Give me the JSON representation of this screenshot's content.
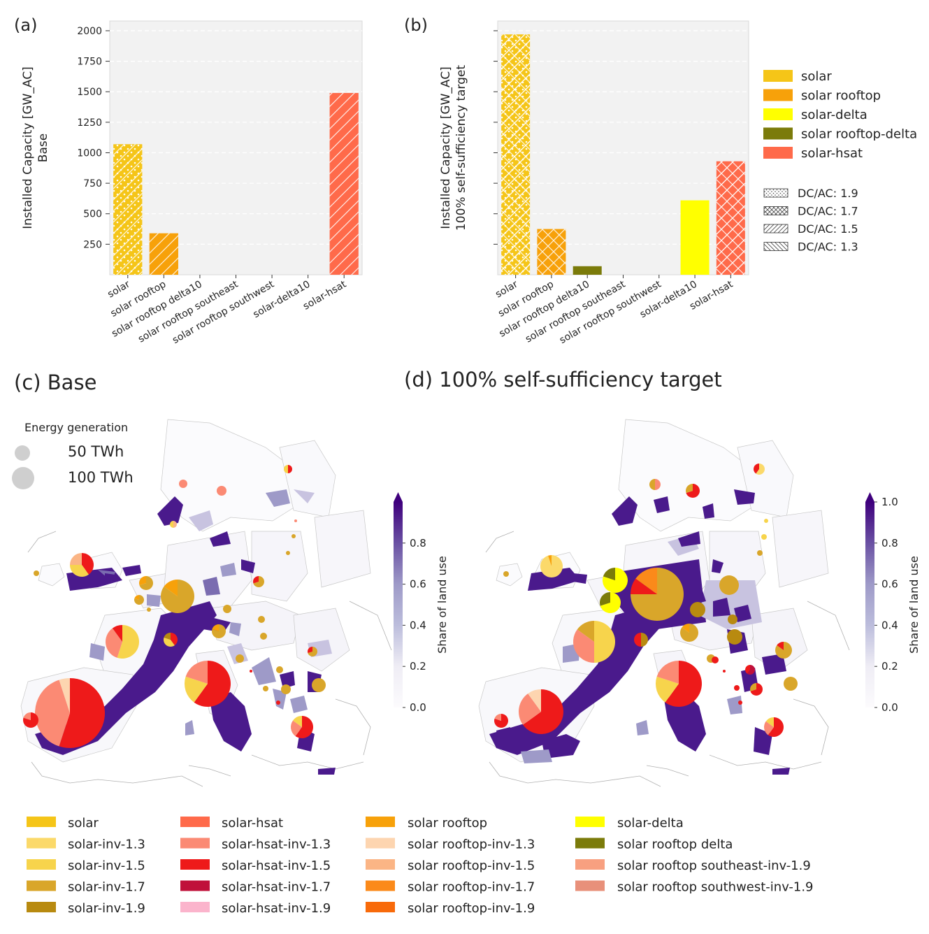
{
  "chart_data": {
    "panels": [
      {
        "id": "a",
        "type": "bar",
        "letter": "(a)",
        "ylabel": "Installed Capacity [GW_AC]",
        "ylabel2": "Base",
        "ylim": [
          0,
          2080
        ],
        "yticks": [
          250,
          500,
          750,
          1000,
          1250,
          1500,
          1750,
          2000
        ],
        "show_tick_labels": true,
        "categories": [
          "solar",
          "solar rooftop",
          "solar rooftop delta10",
          "solar rooftop southeast",
          "solar rooftop southwest",
          "solar-delta10",
          "solar-hsat"
        ],
        "values": [
          1070,
          340,
          0,
          0,
          0,
          0,
          1490
        ],
        "colors": [
          "#f5c518",
          "#f7a10a",
          "#7b7b0a",
          "#f0a07a",
          "#e8907a",
          "#ffff00",
          "#ff6a4a"
        ],
        "hatches": [
          "dots-slash",
          "slash",
          "none",
          "none",
          "none",
          "none",
          "slash"
        ]
      },
      {
        "id": "b",
        "type": "bar",
        "letter": "(b)",
        "ylabel": "Installed Capacity [GW_AC]",
        "ylabel2": "100% self-sufficiency target",
        "ylim": [
          0,
          2080
        ],
        "yticks": [
          250,
          500,
          750,
          1000,
          1250,
          1500,
          1750,
          2000
        ],
        "show_tick_labels": false,
        "categories": [
          "solar",
          "solar rooftop",
          "solar rooftop delta10",
          "solar rooftop southeast",
          "solar rooftop southwest",
          "solar-delta10",
          "solar-hsat"
        ],
        "values": [
          1970,
          375,
          70,
          0,
          0,
          610,
          930
        ],
        "colors": [
          "#f5c518",
          "#f7a10a",
          "#7b7b0a",
          "#f0a07a",
          "#e8907a",
          "#ffff00",
          "#ff6a4a"
        ],
        "hatches": [
          "dots-cross-slash",
          "cross",
          "none",
          "none",
          "none",
          "none",
          "cross-slash"
        ]
      }
    ],
    "bar_legend": {
      "colors": [
        {
          "label": "solar",
          "color": "#f5c518"
        },
        {
          "label": "solar rooftop",
          "color": "#f7a10a"
        },
        {
          "label": "solar-delta",
          "color": "#ffff00"
        },
        {
          "label": "solar rooftop-delta",
          "color": "#7b7b0a"
        },
        {
          "label": "solar-hsat",
          "color": "#ff6a4a"
        }
      ],
      "hatches": [
        {
          "label": "DC/AC: 1.9",
          "pattern": "dots"
        },
        {
          "label": "DC/AC: 1.7",
          "pattern": "cross"
        },
        {
          "label": "DC/AC: 1.5",
          "pattern": "slash"
        },
        {
          "label": "DC/AC: 1.3",
          "pattern": "backslash"
        }
      ]
    },
    "maps": [
      {
        "id": "c",
        "title": "(c) Base"
      },
      {
        "id": "d",
        "title": "(d) 100% self-sufficiency target"
      }
    ],
    "size_legend": {
      "title": "Energy generation",
      "items": [
        {
          "label": "50 TWh"
        },
        {
          "label": "100 TWh"
        }
      ]
    },
    "colorbar": {
      "label": "Share of land use",
      "min": 0.0,
      "max": 1.0,
      "ticks_c": [
        "0.0",
        "0.2",
        "0.4",
        "0.6",
        "0.8"
      ],
      "ticks_d": [
        "0.0",
        "0.2",
        "0.4",
        "0.6",
        "0.8",
        "1.0"
      ]
    },
    "map_legend": [
      {
        "label": "solar",
        "color": "#f5c518"
      },
      {
        "label": "solar-inv-1.3",
        "color": "#fbd96a"
      },
      {
        "label": "solar-inv-1.5",
        "color": "#f7d44c"
      },
      {
        "label": "solar-inv-1.7",
        "color": "#d9a62a"
      },
      {
        "label": "solar-inv-1.9",
        "color": "#b88a10"
      },
      {
        "label": "solar-hsat",
        "color": "#ff6a4a"
      },
      {
        "label": "solar-hsat-inv-1.3",
        "color": "#fb8a74"
      },
      {
        "label": "solar-hsat-inv-1.5",
        "color": "#ee1a1a"
      },
      {
        "label": "solar-hsat-inv-1.7",
        "color": "#c0103a"
      },
      {
        "label": "solar-hsat-inv-1.9",
        "color": "#fbb4cc"
      },
      {
        "label": "solar rooftop",
        "color": "#f7a10a"
      },
      {
        "label": "solar rooftop-inv-1.3",
        "color": "#fdd5b0"
      },
      {
        "label": "solar rooftop-inv-1.5",
        "color": "#fbb585"
      },
      {
        "label": "solar rooftop-inv-1.7",
        "color": "#fb8a1a"
      },
      {
        "label": "solar rooftop-inv-1.9",
        "color": "#f86a0a"
      },
      {
        "label": "solar-delta",
        "color": "#ffff00"
      },
      {
        "label": "solar rooftop delta",
        "color": "#7b7b0a"
      },
      {
        "label": "solar rooftop southeast-inv-1.9",
        "color": "#f8a080"
      },
      {
        "label": "solar rooftop southwest-inv-1.9",
        "color": "#e8907a"
      }
    ]
  }
}
